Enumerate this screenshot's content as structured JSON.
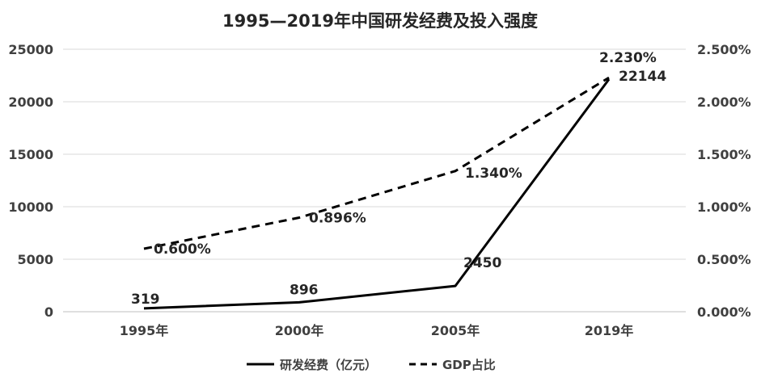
{
  "chart_data": {
    "type": "line",
    "title": "1995—2019年中国研发经费及投入强度",
    "categories": [
      "1995年",
      "2000年",
      "2005年",
      "2019年"
    ],
    "y_left": {
      "ylim": [
        0,
        25000
      ],
      "ticks": [
        "0",
        "5000",
        "10000",
        "15000",
        "20000",
        "25000"
      ]
    },
    "y_right": {
      "ylim": [
        0,
        0.025
      ],
      "ticks": [
        "0.000%",
        "0.500%",
        "1.000%",
        "1.500%",
        "2.000%",
        "2.500%"
      ]
    },
    "series": [
      {
        "name": "研发经费（亿元）",
        "axis": "left",
        "style": "solid",
        "color": "#000000",
        "values": [
          319,
          896,
          2450,
          22144
        ],
        "labels": [
          "319",
          "896",
          "2450",
          "22144"
        ]
      },
      {
        "name": "GDP占比",
        "axis": "right",
        "style": "dashed",
        "color": "#000000",
        "values": [
          0.006,
          0.00896,
          0.0134,
          0.0223
        ],
        "labels": [
          "0.600%",
          "0.896%",
          "1.340%",
          "2.230%"
        ]
      }
    ],
    "grid": true,
    "legend_position": "bottom"
  }
}
